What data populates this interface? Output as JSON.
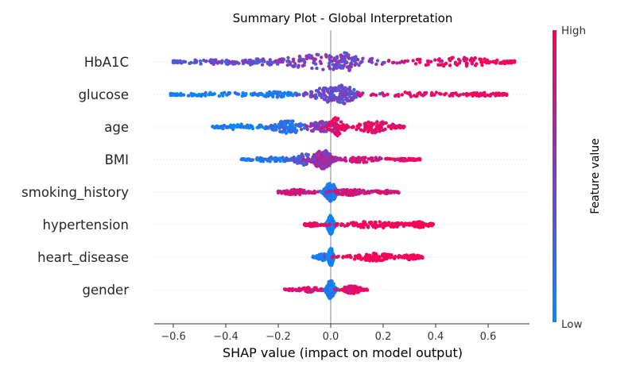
{
  "chart_data": {
    "type": "scatter",
    "subtype": "shap-beeswarm",
    "title": "Summary Plot - Global Interpretation",
    "xlabel": "SHAP value (impact on model output)",
    "xlim": [
      -0.67,
      0.76
    ],
    "xticks": [
      -0.6,
      -0.4,
      -0.2,
      0.0,
      0.2,
      0.4,
      0.6
    ],
    "xtick_labels": [
      "−0.6",
      "−0.4",
      "−0.2",
      "0.0",
      "0.2",
      "0.4",
      "0.6"
    ],
    "colorbar": {
      "label": "Feature value",
      "high": "High",
      "low": "Low",
      "low_color": "#008bfb",
      "high_color": "#ff0052"
    },
    "zero_line_color": "#999999",
    "features": [
      {
        "name": "HbA1C",
        "min": -0.6,
        "max": 0.7,
        "clusters": [
          {
            "c": -0.42,
            "s": 0.13,
            "w": 0.14,
            "h": 0.25,
            "f": 0.35
          },
          {
            "c": -0.27,
            "s": 0.07,
            "w": 0.13,
            "h": 0.35,
            "f": 0.4
          },
          {
            "c": -0.01,
            "s": 0.12,
            "w": 0.4,
            "h": 0.85,
            "f": 0.5
          },
          {
            "c": 0.06,
            "s": 0.04,
            "w": 0.12,
            "h": 1.0,
            "f": 0.45
          },
          {
            "c": 0.47,
            "s": 0.1,
            "w": 0.22,
            "h": 0.55,
            "f": 0.92
          },
          {
            "c": 0.65,
            "s": 0.04,
            "w": 0.06,
            "h": 0.2,
            "f": 0.96
          }
        ]
      },
      {
        "name": "glucose",
        "min": -0.61,
        "max": 0.67,
        "clusters": [
          {
            "c": -0.4,
            "s": 0.15,
            "w": 0.16,
            "h": 0.2,
            "f": 0.05
          },
          {
            "c": -0.21,
            "s": 0.05,
            "w": 0.1,
            "h": 0.3,
            "f": 0.1
          },
          {
            "c": 0.0,
            "s": 0.06,
            "w": 0.3,
            "h": 0.8,
            "f": 0.45
          },
          {
            "c": 0.05,
            "s": 0.03,
            "w": 0.12,
            "h": 1.0,
            "f": 0.4
          },
          {
            "c": 0.35,
            "s": 0.15,
            "w": 0.15,
            "h": 0.25,
            "f": 0.92
          },
          {
            "c": 0.58,
            "s": 0.06,
            "w": 0.05,
            "h": 0.2,
            "f": 0.95
          }
        ]
      },
      {
        "name": "age",
        "min": -0.45,
        "max": 0.28,
        "clusters": [
          {
            "c": -0.33,
            "s": 0.07,
            "w": 0.12,
            "h": 0.3,
            "f": 0.08
          },
          {
            "c": -0.16,
            "s": 0.04,
            "w": 0.28,
            "h": 0.7,
            "f": 0.18
          },
          {
            "c": -0.03,
            "s": 0.04,
            "w": 0.2,
            "h": 0.6,
            "f": 0.55
          },
          {
            "c": 0.02,
            "s": 0.02,
            "w": 0.15,
            "h": 1.0,
            "f": 0.9
          },
          {
            "c": 0.17,
            "s": 0.05,
            "w": 0.25,
            "h": 0.6,
            "f": 0.9
          }
        ]
      },
      {
        "name": "BMI",
        "min": -0.34,
        "max": 0.34,
        "clusters": [
          {
            "c": -0.22,
            "s": 0.06,
            "w": 0.12,
            "h": 0.25,
            "f": 0.12
          },
          {
            "c": -0.1,
            "s": 0.03,
            "w": 0.13,
            "h": 0.6,
            "f": 0.35
          },
          {
            "c": -0.03,
            "s": 0.025,
            "w": 0.5,
            "h": 1.0,
            "f": 0.62
          },
          {
            "c": 0.12,
            "s": 0.06,
            "w": 0.15,
            "h": 0.3,
            "f": 0.8
          },
          {
            "c": 0.28,
            "s": 0.03,
            "w": 0.03,
            "h": 0.15,
            "f": 0.95
          }
        ]
      },
      {
        "name": "smoking_history",
        "min": -0.2,
        "max": 0.26,
        "clusters": [
          {
            "c": -0.13,
            "s": 0.04,
            "w": 0.22,
            "h": 0.3,
            "f": 0.8
          },
          {
            "c": 0.0,
            "s": 0.015,
            "w": 0.4,
            "h": 1.0,
            "f": 0.15
          },
          {
            "c": 0.08,
            "s": 0.04,
            "w": 0.23,
            "h": 0.35,
            "f": 0.8
          },
          {
            "c": 0.2,
            "s": 0.03,
            "w": 0.05,
            "h": 0.2,
            "f": 0.85
          }
        ]
      },
      {
        "name": "hypertension",
        "min": -0.1,
        "max": 0.39,
        "clusters": [
          {
            "c": -0.07,
            "s": 0.02,
            "w": 0.05,
            "h": 0.2,
            "f": 0.95
          },
          {
            "c": 0.0,
            "s": 0.008,
            "w": 0.55,
            "h": 1.0,
            "f": 0.0
          },
          {
            "c": 0.17,
            "s": 0.08,
            "w": 0.3,
            "h": 0.35,
            "f": 1.0
          },
          {
            "c": 0.34,
            "s": 0.03,
            "w": 0.1,
            "h": 0.3,
            "f": 1.0
          }
        ]
      },
      {
        "name": "heart_disease",
        "min": -0.07,
        "max": 0.35,
        "clusters": [
          {
            "c": -0.03,
            "s": 0.015,
            "w": 0.15,
            "h": 0.35,
            "f": 0.08
          },
          {
            "c": 0.0,
            "s": 0.006,
            "w": 0.45,
            "h": 1.0,
            "f": 0.0
          },
          {
            "c": 0.16,
            "s": 0.06,
            "w": 0.3,
            "h": 0.4,
            "f": 1.0
          },
          {
            "c": 0.3,
            "s": 0.03,
            "w": 0.1,
            "h": 0.3,
            "f": 1.0
          }
        ]
      },
      {
        "name": "gender",
        "min": -0.18,
        "max": 0.14,
        "clusters": [
          {
            "c": -0.08,
            "s": 0.03,
            "w": 0.2,
            "h": 0.25,
            "f": 0.88
          },
          {
            "c": 0.0,
            "s": 0.01,
            "w": 0.45,
            "h": 1.0,
            "f": 0.1
          },
          {
            "c": 0.08,
            "s": 0.025,
            "w": 0.35,
            "h": 0.4,
            "f": 0.93
          }
        ]
      }
    ]
  }
}
